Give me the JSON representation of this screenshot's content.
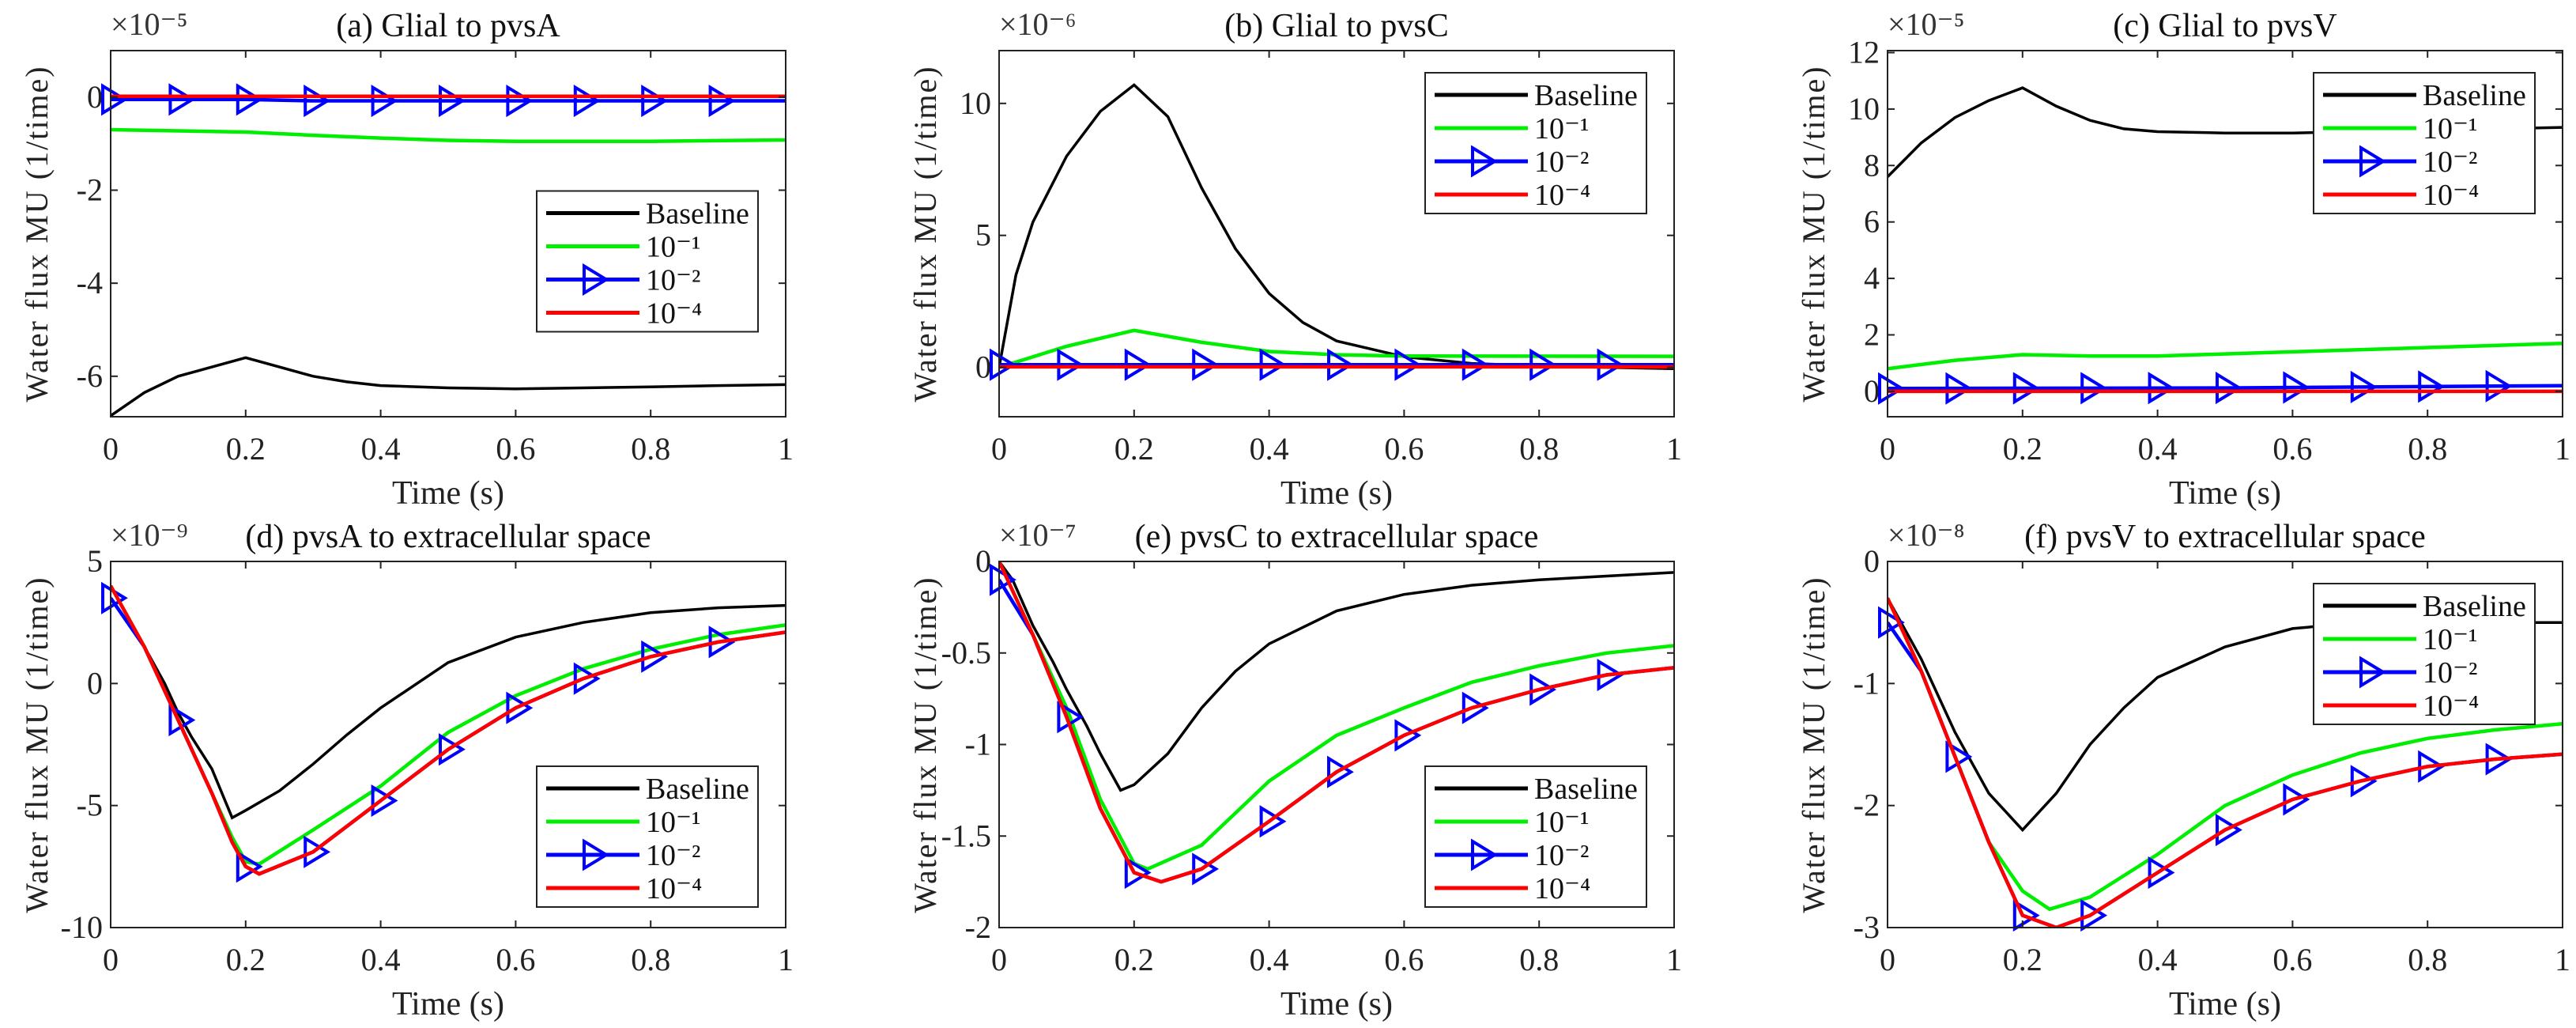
{
  "colors": {
    "Baseline": "#000000",
    "10⁻¹": "#00ee00",
    "10⁻²": "#0000ff",
    "10⁻⁴": "#ff0000"
  },
  "chart_data": [
    {
      "type": "line",
      "title": "(a) Glial to pvsA",
      "xlabel": "Time (s)",
      "ylabel": "Water flux MU (1/time)",
      "exponent": "×10⁻⁵",
      "xlim": [
        0,
        1
      ],
      "ylim": [
        -6.87,
        1
      ],
      "xticks": [
        "0",
        "0.2",
        "0.4",
        "0.6",
        "0.8",
        "1"
      ],
      "yticks": [
        0,
        -2,
        -4,
        -6
      ],
      "ytick_labels": [
        "0",
        "-2",
        "-4",
        "-6"
      ],
      "legend": "center-right",
      "series": [
        {
          "name": "Baseline",
          "x": [
            0,
            0.05,
            0.1,
            0.15,
            0.2,
            0.25,
            0.3,
            0.35,
            0.4,
            0.5,
            0.6,
            0.7,
            0.8,
            0.9,
            1
          ],
          "y": [
            -6.85,
            -6.35,
            -6.0,
            -5.8,
            -5.6,
            -5.8,
            -6.0,
            -6.12,
            -6.2,
            -6.25,
            -6.27,
            -6.25,
            -6.23,
            -6.2,
            -6.18
          ]
        },
        {
          "name": "10⁻¹",
          "x": [
            0,
            0.2,
            0.3,
            0.4,
            0.5,
            0.6,
            0.8,
            1
          ],
          "y": [
            -0.7,
            -0.75,
            -0.82,
            -0.88,
            -0.93,
            -0.95,
            -0.95,
            -0.92
          ]
        },
        {
          "name": "10⁻²",
          "x": [
            0,
            0.2,
            0.3,
            1
          ],
          "y": [
            -0.05,
            -0.05,
            -0.08,
            -0.08
          ],
          "markers": true
        },
        {
          "name": "10⁻⁴",
          "x": [
            0,
            1
          ],
          "y": [
            0.02,
            0.02
          ]
        }
      ]
    },
    {
      "type": "line",
      "title": "(b) Glial to pvsC",
      "xlabel": "Time (s)",
      "ylabel": "Water flux MU (1/time)",
      "exponent": "×10⁻⁶",
      "xlim": [
        0,
        1
      ],
      "ylim": [
        -1.87,
        12
      ],
      "xticks": [
        "0",
        "0.2",
        "0.4",
        "0.6",
        "0.8",
        "1"
      ],
      "yticks": [
        0,
        5,
        10
      ],
      "ytick_labels": [
        "0",
        "5",
        "10"
      ],
      "legend": "top-right",
      "series": [
        {
          "name": "Baseline",
          "x": [
            0,
            0.025,
            0.05,
            0.1,
            0.15,
            0.2,
            0.25,
            0.3,
            0.35,
            0.4,
            0.45,
            0.5,
            0.6,
            0.7,
            0.8,
            0.9,
            1
          ],
          "y": [
            0,
            3.5,
            5.5,
            8.0,
            9.7,
            10.7,
            9.5,
            6.8,
            4.5,
            2.8,
            1.7,
            1.0,
            0.4,
            0.15,
            0.05,
            0.0,
            -0.05
          ]
        },
        {
          "name": "10⁻¹",
          "x": [
            0,
            0.1,
            0.2,
            0.3,
            0.4,
            0.5,
            0.6,
            1
          ],
          "y": [
            0,
            0.8,
            1.4,
            0.95,
            0.6,
            0.48,
            0.43,
            0.42
          ]
        },
        {
          "name": "10⁻²",
          "x": [
            0,
            1
          ],
          "y": [
            0.1,
            0.1
          ],
          "markers": true
        },
        {
          "name": "10⁻⁴",
          "x": [
            0,
            1
          ],
          "y": [
            0.02,
            0.02
          ]
        }
      ]
    },
    {
      "type": "line",
      "title": "(c) Glial to pvsV",
      "xlabel": "Time (s)",
      "ylabel": "Water flux MU (1/time)",
      "exponent": "×10⁻⁵",
      "xlim": [
        0,
        1
      ],
      "ylim": [
        -0.9,
        12.07
      ],
      "xticks": [
        "0",
        "0.2",
        "0.4",
        "0.6",
        "0.8",
        "1"
      ],
      "yticks": [
        0,
        2,
        4,
        6,
        8,
        10,
        12
      ],
      "ytick_labels": [
        "0",
        "2",
        "4",
        "6",
        "8",
        "10",
        "12"
      ],
      "legend": "top-right",
      "series": [
        {
          "name": "Baseline",
          "x": [
            0,
            0.05,
            0.1,
            0.15,
            0.2,
            0.25,
            0.3,
            0.35,
            0.4,
            0.5,
            0.6,
            0.7,
            0.8,
            0.9,
            1
          ],
          "y": [
            7.6,
            8.8,
            9.7,
            10.3,
            10.75,
            10.1,
            9.6,
            9.3,
            9.2,
            9.15,
            9.15,
            9.2,
            9.25,
            9.3,
            9.35
          ]
        },
        {
          "name": "10⁻¹",
          "x": [
            0,
            0.1,
            0.2,
            0.3,
            0.4,
            0.6,
            0.8,
            1
          ],
          "y": [
            0.8,
            1.1,
            1.3,
            1.25,
            1.25,
            1.4,
            1.55,
            1.7
          ]
        },
        {
          "name": "10⁻²",
          "x": [
            0,
            0.5,
            1
          ],
          "y": [
            0.1,
            0.12,
            0.2
          ],
          "markers": true
        },
        {
          "name": "10⁻⁴",
          "x": [
            0,
            1
          ],
          "y": [
            0,
            0
          ]
        }
      ]
    },
    {
      "type": "line",
      "title": "(d) pvsA to extracellular space",
      "xlabel": "Time (s)",
      "ylabel": "Water flux MU (1/time)",
      "exponent": "×10⁻⁹",
      "xlim": [
        0,
        1
      ],
      "ylim": [
        -10,
        5
      ],
      "xticks": [
        "0",
        "0.2",
        "0.4",
        "0.6",
        "0.8",
        "1"
      ],
      "yticks": [
        5,
        0,
        -5,
        -10
      ],
      "ytick_labels": [
        "5",
        "0",
        "-5",
        "-10"
      ],
      "legend": "bottom-right",
      "series": [
        {
          "name": "Baseline",
          "x": [
            0,
            0.02,
            0.05,
            0.08,
            0.1,
            0.12,
            0.15,
            0.18,
            0.2,
            0.25,
            0.3,
            0.35,
            0.4,
            0.5,
            0.6,
            0.7,
            0.8,
            0.9,
            1
          ],
          "y": [
            4,
            3.0,
            1.5,
            0,
            -1.2,
            -2.2,
            -3.5,
            -5.5,
            -5.2,
            -4.4,
            -3.3,
            -2.1,
            -1.0,
            0.86,
            1.9,
            2.5,
            2.9,
            3.1,
            3.2
          ]
        },
        {
          "name": "10⁻¹",
          "x": [
            0,
            0.05,
            0.1,
            0.15,
            0.18,
            0.2,
            0.22,
            0.3,
            0.4,
            0.5,
            0.6,
            0.7,
            0.8,
            0.9,
            1
          ],
          "y": [
            4,
            1.5,
            -1.5,
            -4.5,
            -6.3,
            -7.3,
            -7.4,
            -6.0,
            -4.2,
            -2.0,
            -0.5,
            0.6,
            1.4,
            2.0,
            2.4
          ]
        },
        {
          "name": "10⁻²",
          "x": [
            0,
            0.05,
            0.1,
            0.15,
            0.18,
            0.2,
            0.22,
            0.3,
            0.4,
            0.5,
            0.6,
            0.7,
            0.8,
            0.9,
            1
          ],
          "y": [
            3.5,
            1.5,
            -1.5,
            -4.5,
            -6.5,
            -7.5,
            -7.8,
            -6.9,
            -4.8,
            -2.7,
            -1.0,
            0.2,
            1.1,
            1.7,
            2.1
          ],
          "markers": true
        },
        {
          "name": "10⁻⁴",
          "x": [
            0,
            0.05,
            0.1,
            0.15,
            0.18,
            0.2,
            0.22,
            0.3,
            0.4,
            0.5,
            0.6,
            0.7,
            0.8,
            0.9,
            1
          ],
          "y": [
            4,
            1.5,
            -1.5,
            -4.5,
            -6.5,
            -7.5,
            -7.8,
            -6.9,
            -4.8,
            -2.7,
            -1.0,
            0.2,
            1.1,
            1.7,
            2.1
          ]
        }
      ]
    },
    {
      "type": "line",
      "title": "(e) pvsC to extracellular space",
      "xlabel": "Time (s)",
      "ylabel": "Water flux MU (1/time)",
      "exponent": "×10⁻⁷",
      "xlim": [
        0,
        1
      ],
      "ylim": [
        -2,
        0
      ],
      "xticks": [
        "0",
        "0.2",
        "0.4",
        "0.6",
        "0.8",
        "1"
      ],
      "yticks": [
        0,
        -0.5,
        -1,
        -1.5,
        -2
      ],
      "ytick_labels": [
        "0",
        "-0.5",
        "-1",
        "-1.5",
        "-2"
      ],
      "legend": "bottom-right",
      "series": [
        {
          "name": "Baseline",
          "x": [
            0,
            0.02,
            0.05,
            0.08,
            0.1,
            0.13,
            0.15,
            0.18,
            0.2,
            0.25,
            0.3,
            0.35,
            0.4,
            0.5,
            0.6,
            0.7,
            0.8,
            0.9,
            1
          ],
          "y": [
            0,
            -0.1,
            -0.35,
            -0.55,
            -0.7,
            -0.9,
            -1.05,
            -1.25,
            -1.22,
            -1.05,
            -0.8,
            -0.6,
            -0.45,
            -0.27,
            -0.18,
            -0.13,
            -0.1,
            -0.08,
            -0.06
          ]
        },
        {
          "name": "10⁻¹",
          "x": [
            0,
            0.05,
            0.1,
            0.15,
            0.2,
            0.22,
            0.3,
            0.4,
            0.5,
            0.6,
            0.7,
            0.8,
            0.9,
            1
          ],
          "y": [
            0,
            -0.4,
            -0.8,
            -1.3,
            -1.65,
            -1.68,
            -1.55,
            -1.2,
            -0.95,
            -0.8,
            -0.66,
            -0.57,
            -0.5,
            -0.46
          ]
        },
        {
          "name": "10⁻²",
          "x": [
            0,
            0.05,
            0.1,
            0.15,
            0.2,
            0.24,
            0.3,
            0.4,
            0.5,
            0.6,
            0.7,
            0.8,
            0.9,
            1
          ],
          "y": [
            -0.1,
            -0.4,
            -0.85,
            -1.35,
            -1.7,
            -1.75,
            -1.68,
            -1.42,
            -1.15,
            -0.95,
            -0.8,
            -0.7,
            -0.62,
            -0.58
          ],
          "markers": true
        },
        {
          "name": "10⁻⁴",
          "x": [
            0,
            0.05,
            0.1,
            0.15,
            0.2,
            0.24,
            0.3,
            0.4,
            0.5,
            0.6,
            0.7,
            0.8,
            0.9,
            1
          ],
          "y": [
            0,
            -0.4,
            -0.85,
            -1.35,
            -1.7,
            -1.75,
            -1.68,
            -1.42,
            -1.15,
            -0.95,
            -0.8,
            -0.7,
            -0.62,
            -0.58
          ]
        }
      ]
    },
    {
      "type": "line",
      "title": "(f) pvsV to extracellular space",
      "xlabel": "Time (s)",
      "ylabel": "Water flux MU (1/time)",
      "exponent": "×10⁻⁸",
      "xlim": [
        0,
        1
      ],
      "ylim": [
        -3,
        0
      ],
      "xticks": [
        "0",
        "0.2",
        "0.4",
        "0.6",
        "0.8",
        "1"
      ],
      "yticks": [
        0,
        -1,
        -2,
        -3
      ],
      "ytick_labels": [
        "0",
        "-1",
        "-2",
        "-3"
      ],
      "legend": "top-right",
      "series": [
        {
          "name": "Baseline",
          "x": [
            0,
            0.05,
            0.1,
            0.15,
            0.2,
            0.25,
            0.3,
            0.35,
            0.4,
            0.5,
            0.6,
            0.7,
            0.8,
            0.9,
            1
          ],
          "y": [
            -0.3,
            -0.8,
            -1.4,
            -1.9,
            -2.2,
            -1.9,
            -1.5,
            -1.2,
            -0.95,
            -0.7,
            -0.55,
            -0.5,
            -0.5,
            -0.5,
            -0.5
          ]
        },
        {
          "name": "10⁻¹",
          "x": [
            0,
            0.05,
            0.1,
            0.15,
            0.2,
            0.24,
            0.3,
            0.4,
            0.5,
            0.6,
            0.7,
            0.8,
            0.9,
            1
          ],
          "y": [
            -0.3,
            -0.9,
            -1.6,
            -2.3,
            -2.7,
            -2.85,
            -2.75,
            -2.4,
            -2.0,
            -1.75,
            -1.57,
            -1.45,
            -1.38,
            -1.33
          ]
        },
        {
          "name": "10⁻²",
          "x": [
            0,
            0.05,
            0.1,
            0.15,
            0.2,
            0.25,
            0.3,
            0.4,
            0.5,
            0.6,
            0.7,
            0.8,
            0.9,
            1
          ],
          "y": [
            -0.5,
            -0.9,
            -1.6,
            -2.3,
            -2.9,
            -3.0,
            -2.9,
            -2.55,
            -2.2,
            -1.95,
            -1.8,
            -1.68,
            -1.62,
            -1.58
          ],
          "markers": true
        },
        {
          "name": "10⁻⁴",
          "x": [
            0,
            0.05,
            0.1,
            0.15,
            0.2,
            0.25,
            0.3,
            0.4,
            0.5,
            0.6,
            0.7,
            0.8,
            0.9,
            1
          ],
          "y": [
            -0.3,
            -0.9,
            -1.6,
            -2.3,
            -2.9,
            -3.0,
            -2.9,
            -2.55,
            -2.2,
            -1.95,
            -1.8,
            -1.68,
            -1.62,
            -1.58
          ]
        }
      ]
    }
  ]
}
